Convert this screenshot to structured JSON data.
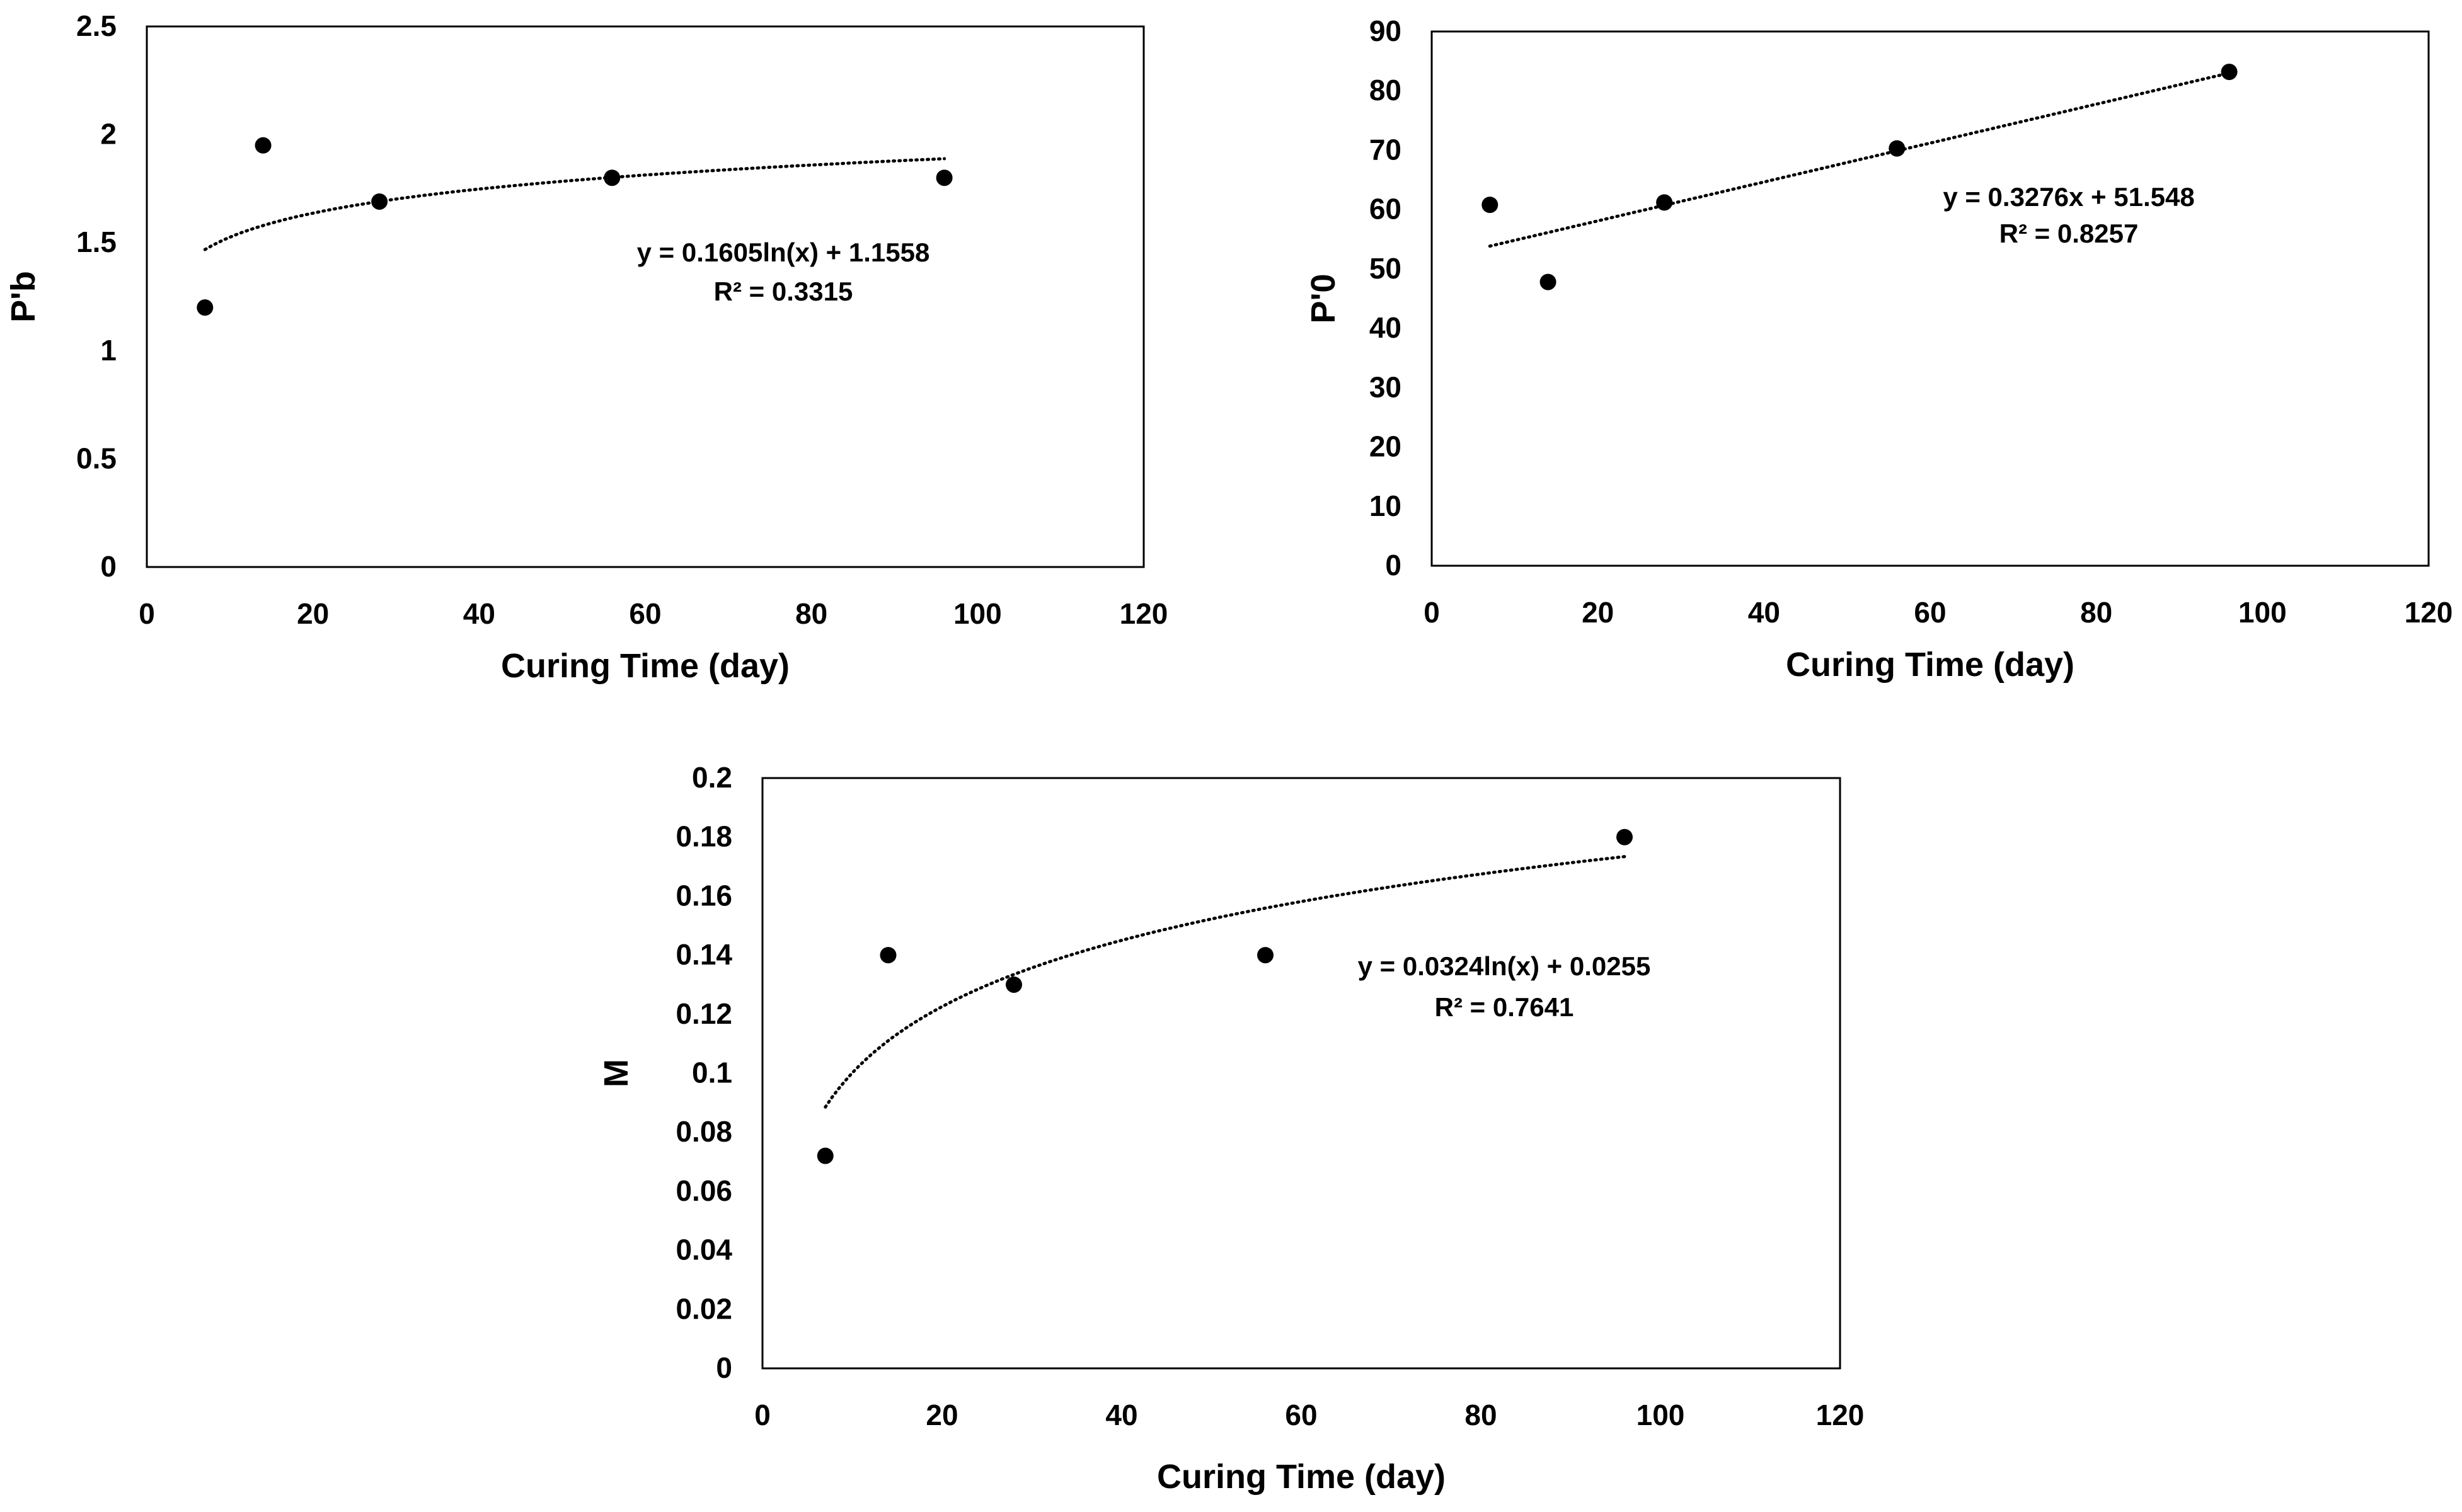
{
  "chart_data": [
    {
      "type": "scatter",
      "id": "pb",
      "xlabel": "Curing Time (day)",
      "ylabel": "P'b",
      "xlim": [
        0,
        120
      ],
      "ylim": [
        0,
        2.5
      ],
      "xticks": [
        0,
        20,
        40,
        60,
        80,
        100,
        120
      ],
      "yticks": [
        0,
        0.5,
        1,
        1.5,
        2,
        2.5
      ],
      "ytick_labels": [
        "0",
        "0.5",
        "1",
        "1.5",
        "2",
        "2.5"
      ],
      "points": [
        {
          "x": 7,
          "y": 1.2
        },
        {
          "x": 14,
          "y": 1.95
        },
        {
          "x": 28,
          "y": 1.69
        },
        {
          "x": 56,
          "y": 1.8
        },
        {
          "x": 96,
          "y": 1.8
        }
      ],
      "trendline": {
        "kind": "log",
        "a": 0.1605,
        "b": 1.1558,
        "x_from": 7,
        "x_to": 96
      },
      "equation": "y = 0.1605ln(x) + 1.1558",
      "r_squared": "R² = 0.3315"
    },
    {
      "type": "scatter",
      "id": "p0",
      "xlabel": "Curing Time (day)",
      "ylabel": "P'0",
      "xlim": [
        0,
        120
      ],
      "ylim": [
        0,
        90
      ],
      "xticks": [
        0,
        20,
        40,
        60,
        80,
        100,
        120
      ],
      "yticks": [
        0,
        10,
        20,
        30,
        40,
        50,
        60,
        70,
        80,
        90
      ],
      "ytick_labels": [
        "0",
        "10",
        "20",
        "30",
        "40",
        "50",
        "60",
        "70",
        "80",
        "90"
      ],
      "points": [
        {
          "x": 7,
          "y": 60.8
        },
        {
          "x": 14,
          "y": 47.8
        },
        {
          "x": 28,
          "y": 61.2
        },
        {
          "x": 56,
          "y": 70.3
        },
        {
          "x": 96,
          "y": 83.2
        }
      ],
      "trendline": {
        "kind": "linear",
        "a": 0.3276,
        "b": 51.548,
        "x_from": 7,
        "x_to": 96
      },
      "equation": "y = 0.3276x + 51.548",
      "r_squared": "R² = 0.8257"
    },
    {
      "type": "scatter",
      "id": "m",
      "xlabel": "Curing Time (day)",
      "ylabel": "M",
      "xlim": [
        0,
        120
      ],
      "ylim": [
        0,
        0.2
      ],
      "xticks": [
        0,
        20,
        40,
        60,
        80,
        100,
        120
      ],
      "yticks": [
        0,
        0.02,
        0.04,
        0.06,
        0.08,
        0.1,
        0.12,
        0.14,
        0.16,
        0.18,
        0.2
      ],
      "ytick_labels": [
        "0",
        "0.02",
        "0.04",
        "0.06",
        "0.08",
        "0.1",
        "0.12",
        "0.14",
        "0.16",
        "0.18",
        "0.2"
      ],
      "points": [
        {
          "x": 7,
          "y": 0.072
        },
        {
          "x": 14,
          "y": 0.14
        },
        {
          "x": 28,
          "y": 0.13
        },
        {
          "x": 56,
          "y": 0.14
        },
        {
          "x": 96,
          "y": 0.18
        }
      ],
      "trendline": {
        "kind": "log",
        "a": 0.0324,
        "b": 0.0255,
        "x_from": 7,
        "x_to": 96
      },
      "equation": "y = 0.0324ln(x) + 0.0255",
      "r_squared": "R² = 0.7641"
    }
  ]
}
